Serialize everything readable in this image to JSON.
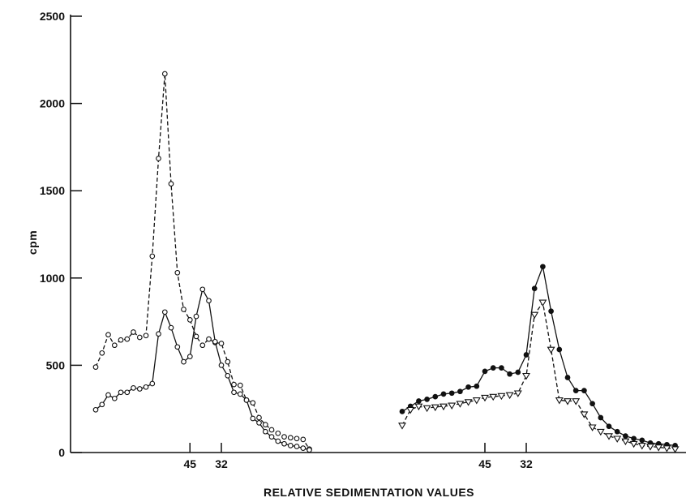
{
  "chart_data": {
    "type": "line",
    "title": "",
    "ylabel": "cpm",
    "xlabel": "RELATIVE SEDIMENTATION VALUES",
    "ylim": [
      0,
      2500
    ],
    "yticks": [
      0,
      500,
      1000,
      1500,
      2000,
      2500
    ],
    "grid": false,
    "legend": "none",
    "panels": [
      {
        "id": "left",
        "x_ticks": [
          {
            "label": "45",
            "fraction": 16
          },
          {
            "label": "32",
            "fraction": 21
          }
        ],
        "series": [
          {
            "style": "dashed-open-circle",
            "x": [
              1,
              2,
              3,
              4,
              5,
              6,
              7,
              8,
              9,
              10,
              11,
              12,
              13,
              14,
              15,
              16,
              17,
              18,
              19,
              20,
              21,
              22,
              23,
              24,
              25,
              26,
              27,
              28,
              29,
              30,
              31,
              32,
              33,
              34,
              35
            ],
            "y": [
              490,
              570,
              675,
              615,
              645,
              650,
              690,
              660,
              670,
              1125,
              1685,
              2170,
              1540,
              1030,
              820,
              760,
              665,
              615,
              650,
              630,
              625,
              520,
              390,
              385,
              300,
              285,
              200,
              160,
              130,
              110,
              90,
              85,
              80,
              75,
              20
            ]
          },
          {
            "style": "solid-open-circle",
            "x": [
              1,
              2,
              3,
              4,
              5,
              6,
              7,
              8,
              9,
              10,
              11,
              12,
              13,
              14,
              15,
              16,
              17,
              18,
              19,
              20,
              21,
              22,
              23,
              24,
              25,
              26,
              27,
              28,
              29,
              30,
              31,
              32,
              33,
              34,
              35
            ],
            "y": [
              245,
              275,
              330,
              310,
              345,
              345,
              370,
              365,
              375,
              395,
              680,
              805,
              715,
              605,
              520,
              550,
              780,
              935,
              870,
              635,
              500,
              440,
              345,
              335,
              300,
              195,
              170,
              120,
              90,
              65,
              50,
              40,
              35,
              25,
              15
            ]
          }
        ]
      },
      {
        "id": "right",
        "x_ticks": [
          {
            "label": "45",
            "fraction": 11
          },
          {
            "label": "32",
            "fraction": 16
          }
        ],
        "series": [
          {
            "style": "solid-filled-circle",
            "x": [
              1,
              2,
              3,
              4,
              5,
              6,
              7,
              8,
              9,
              10,
              11,
              12,
              13,
              14,
              15,
              16,
              17,
              18,
              19,
              20,
              21,
              22,
              23,
              24,
              25,
              26,
              27,
              28,
              29,
              30,
              31,
              32,
              33,
              34
            ],
            "y": [
              235,
              265,
              295,
              305,
              320,
              335,
              340,
              350,
              375,
              380,
              465,
              485,
              485,
              450,
              460,
              560,
              940,
              1065,
              810,
              590,
              430,
              355,
              355,
              280,
              200,
              150,
              120,
              95,
              80,
              70,
              55,
              50,
              45,
              40
            ]
          },
          {
            "style": "dashed-open-triangle",
            "x": [
              1,
              2,
              3,
              4,
              5,
              6,
              7,
              8,
              9,
              10,
              11,
              12,
              13,
              14,
              15,
              16,
              17,
              18,
              19,
              20,
              21,
              22,
              23,
              24,
              25,
              26,
              27,
              28,
              29,
              30,
              31,
              32,
              33,
              34
            ],
            "y": [
              155,
              245,
              265,
              255,
              260,
              265,
              270,
              280,
              290,
              300,
              315,
              320,
              325,
              330,
              340,
              440,
              790,
              860,
              590,
              300,
              295,
              295,
              220,
              145,
              120,
              95,
              80,
              65,
              50,
              40,
              35,
              30,
              25,
              20
            ]
          }
        ]
      }
    ]
  }
}
